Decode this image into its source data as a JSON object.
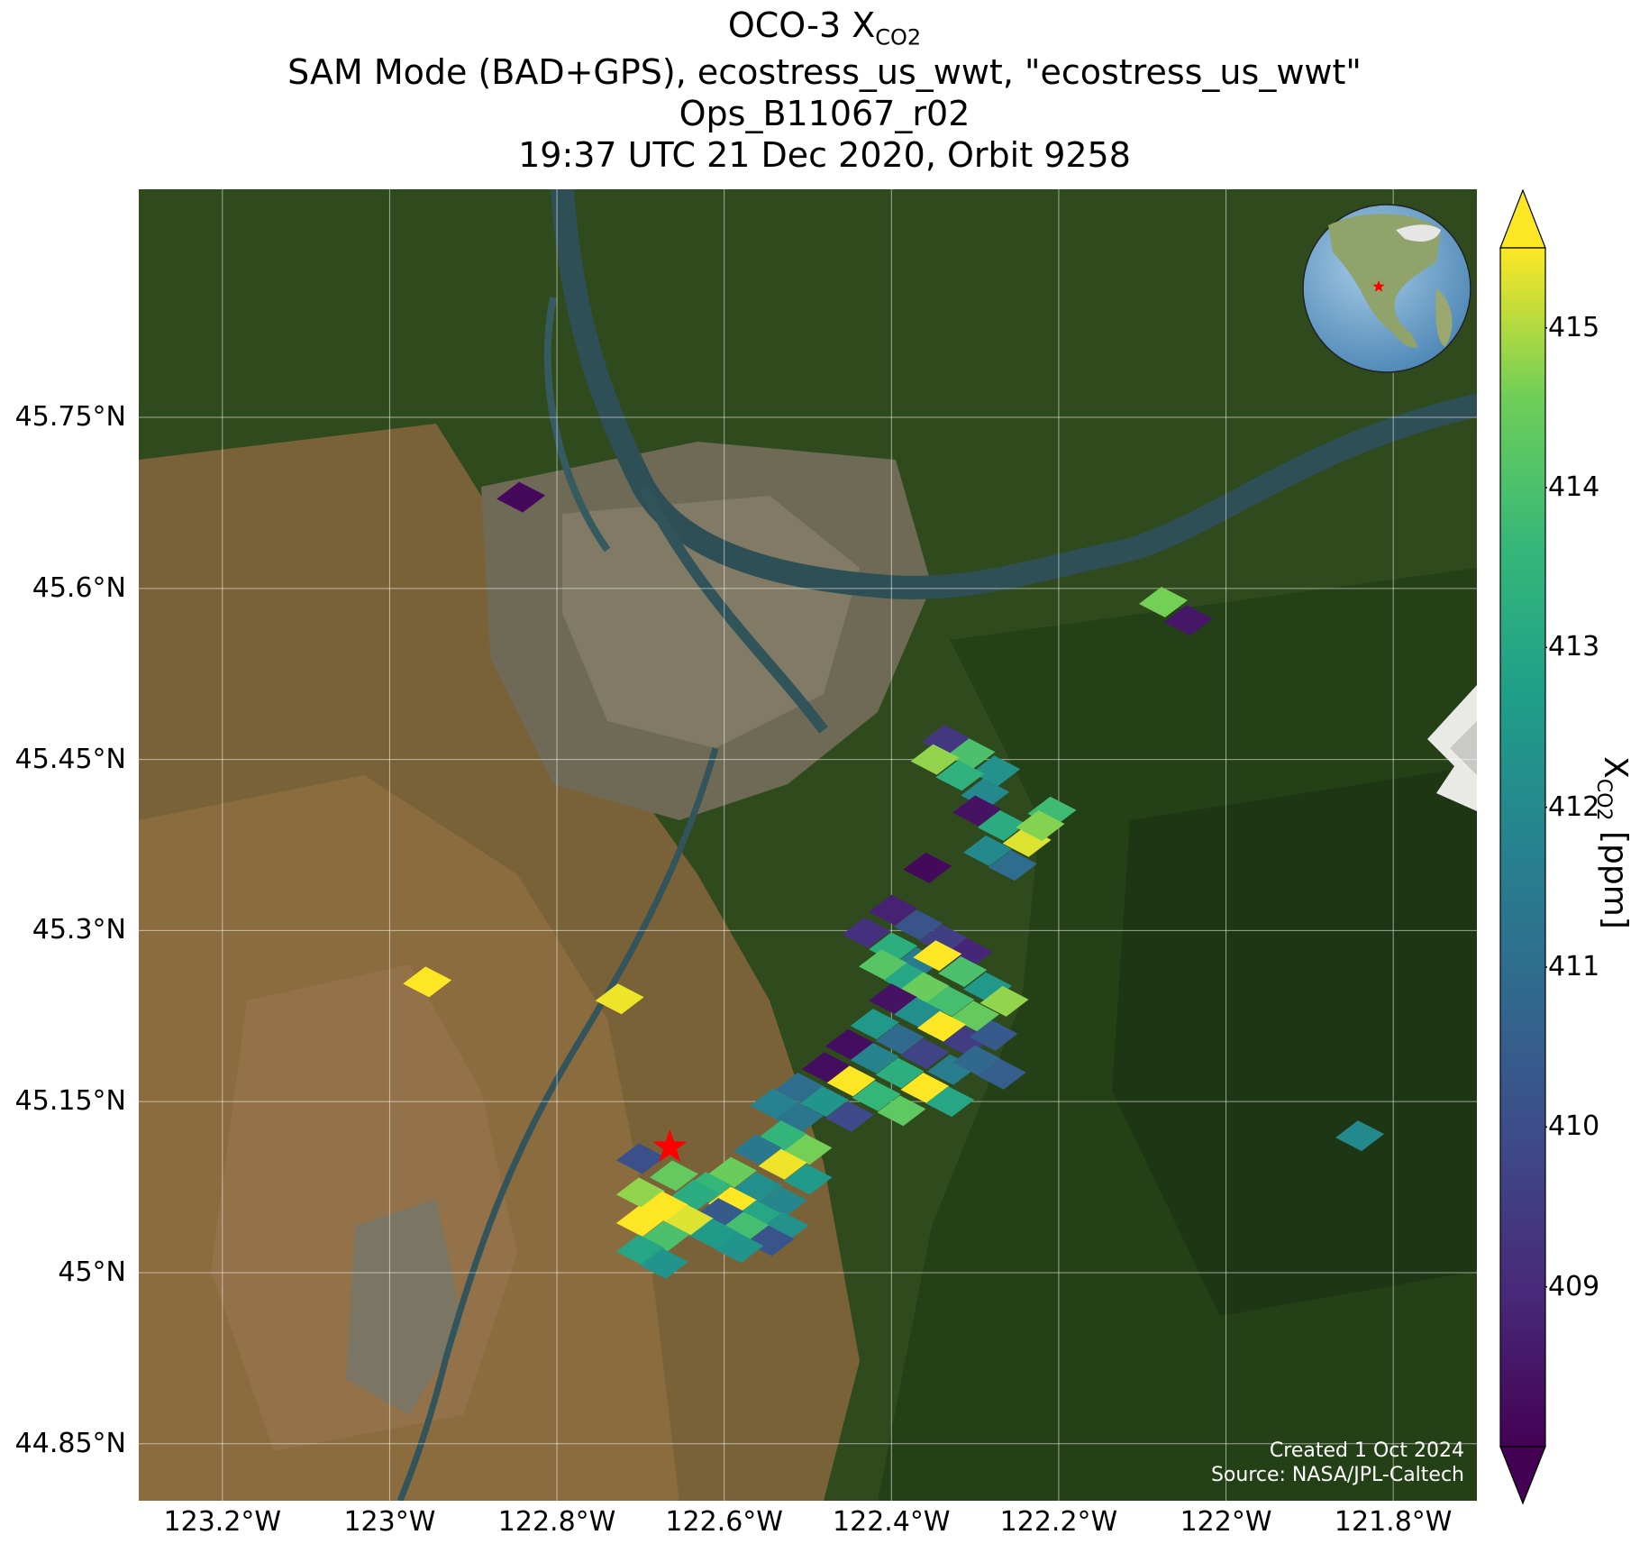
{
  "title": {
    "line1_prefix": "OCO-3 X",
    "line1_sub": "CO2",
    "line2": "SAM Mode (BAD+GPS), ecostress_us_wwt, \"ecostress_us_wwt\"",
    "line3": "Ops_B11067_r02",
    "line4": "19:37 UTC 21 Dec 2020, Orbit 9258"
  },
  "map": {
    "lon_range": [
      -123.3,
      -121.7
    ],
    "lat_range": [
      44.8,
      45.95
    ],
    "lat_ticks": [
      {
        "value": 45.75,
        "label": "45.75°N"
      },
      {
        "value": 45.6,
        "label": "45.6°N"
      },
      {
        "value": 45.45,
        "label": "45.45°N"
      },
      {
        "value": 45.3,
        "label": "45.3°N"
      },
      {
        "value": 45.15,
        "label": "45.15°N"
      },
      {
        "value": 45.0,
        "label": "45°N"
      },
      {
        "value": 44.85,
        "label": "44.85°N"
      }
    ],
    "lon_ticks": [
      {
        "value": -123.2,
        "label": "123.2°W"
      },
      {
        "value": -123.0,
        "label": "123°W"
      },
      {
        "value": -122.8,
        "label": "122.8°W"
      },
      {
        "value": -122.6,
        "label": "122.6°W"
      },
      {
        "value": -122.4,
        "label": "122.4°W"
      },
      {
        "value": -122.2,
        "label": "122.2°W"
      },
      {
        "value": -122.0,
        "label": "122°W"
      },
      {
        "value": -121.8,
        "label": "121.8°W"
      }
    ],
    "grid": true,
    "target_marker": {
      "lon": -122.665,
      "lat": 45.11,
      "color": "#ff0000",
      "icon": "star-icon"
    },
    "background": "satellite-imagery",
    "inset_globe": {
      "position": "top-right",
      "icon": "globe-icon"
    }
  },
  "colorbar": {
    "label_prefix": "X",
    "label_sub": "CO2",
    "label_suffix": " [ppm]",
    "min": 408.0,
    "max": 415.5,
    "extend": "both",
    "colormap": "viridis",
    "ticks": [
      {
        "value": 409,
        "label": "409"
      },
      {
        "value": 410,
        "label": "410"
      },
      {
        "value": 411,
        "label": "411"
      },
      {
        "value": 412,
        "label": "412"
      },
      {
        "value": 413,
        "label": "413"
      },
      {
        "value": 414,
        "label": "414"
      },
      {
        "value": 415,
        "label": "415"
      }
    ]
  },
  "credits": {
    "created": "Created 1 Oct 2024",
    "source": "Source: NASA/JPL-Caltech"
  },
  "chart_data": {
    "type": "scatter",
    "title": "OCO-3 XCO2",
    "value_name": "XCO2 [ppm]",
    "points": [
      {
        "lon": -122.843,
        "lat": 45.68,
        "xco2": 408.2
      },
      {
        "lon": -122.075,
        "lat": 45.588,
        "xco2": 414.6
      },
      {
        "lon": -122.045,
        "lat": 45.572,
        "xco2": 408.5
      },
      {
        "lon": -122.955,
        "lat": 45.255,
        "xco2": 415.6
      },
      {
        "lon": -122.725,
        "lat": 45.24,
        "xco2": 415.4
      },
      {
        "lon": -122.335,
        "lat": 45.467,
        "xco2": 409.4
      },
      {
        "lon": -122.305,
        "lat": 45.455,
        "xco2": 414.0
      },
      {
        "lon": -122.275,
        "lat": 45.44,
        "xco2": 412.3
      },
      {
        "lon": -122.348,
        "lat": 45.45,
        "xco2": 414.8
      },
      {
        "lon": -122.318,
        "lat": 45.436,
        "xco2": 413.4
      },
      {
        "lon": -122.288,
        "lat": 45.42,
        "xco2": 412.0
      },
      {
        "lon": -122.298,
        "lat": 45.405,
        "xco2": 408.4
      },
      {
        "lon": -122.268,
        "lat": 45.392,
        "xco2": 413.2
      },
      {
        "lon": -122.238,
        "lat": 45.378,
        "xco2": 415.3
      },
      {
        "lon": -122.208,
        "lat": 45.404,
        "xco2": 413.8
      },
      {
        "lon": -122.222,
        "lat": 45.392,
        "xco2": 414.7
      },
      {
        "lon": -122.285,
        "lat": 45.37,
        "xco2": 412.0
      },
      {
        "lon": -122.255,
        "lat": 45.357,
        "xco2": 411.0
      },
      {
        "lon": -122.357,
        "lat": 45.355,
        "xco2": 408.2
      },
      {
        "lon": -122.398,
        "lat": 45.318,
        "xco2": 408.8
      },
      {
        "lon": -122.368,
        "lat": 45.305,
        "xco2": 410.2
      },
      {
        "lon": -122.338,
        "lat": 45.292,
        "xco2": 409.6
      },
      {
        "lon": -122.43,
        "lat": 45.298,
        "xco2": 409.2
      },
      {
        "lon": -122.398,
        "lat": 45.285,
        "xco2": 413.3
      },
      {
        "lon": -122.368,
        "lat": 45.272,
        "xco2": 411.5
      },
      {
        "lon": -122.308,
        "lat": 45.28,
        "xco2": 408.9
      },
      {
        "lon": -122.41,
        "lat": 45.27,
        "xco2": 414.2
      },
      {
        "lon": -122.38,
        "lat": 45.258,
        "xco2": 413.0
      },
      {
        "lon": -122.345,
        "lat": 45.278,
        "xco2": 415.6
      },
      {
        "lon": -122.315,
        "lat": 45.264,
        "xco2": 414.0
      },
      {
        "lon": -122.285,
        "lat": 45.25,
        "xco2": 412.5
      },
      {
        "lon": -122.36,
        "lat": 45.25,
        "xco2": 414.5
      },
      {
        "lon": -122.33,
        "lat": 45.238,
        "xco2": 413.9
      },
      {
        "lon": -122.3,
        "lat": 45.225,
        "xco2": 414.4
      },
      {
        "lon": -122.265,
        "lat": 45.238,
        "xco2": 414.8
      },
      {
        "lon": -122.398,
        "lat": 45.24,
        "xco2": 408.4
      },
      {
        "lon": -122.368,
        "lat": 45.228,
        "xco2": 412.2
      },
      {
        "lon": -122.34,
        "lat": 45.216,
        "xco2": 415.6
      },
      {
        "lon": -122.31,
        "lat": 45.203,
        "xco2": 409.5
      },
      {
        "lon": -122.278,
        "lat": 45.208,
        "xco2": 410.4
      },
      {
        "lon": -122.42,
        "lat": 45.218,
        "xco2": 412.5
      },
      {
        "lon": -122.39,
        "lat": 45.205,
        "xco2": 410.9
      },
      {
        "lon": -122.36,
        "lat": 45.192,
        "xco2": 409.7
      },
      {
        "lon": -122.328,
        "lat": 45.178,
        "xco2": 411.6
      },
      {
        "lon": -122.298,
        "lat": 45.186,
        "xco2": 410.8
      },
      {
        "lon": -122.268,
        "lat": 45.174,
        "xco2": 410.5
      },
      {
        "lon": -122.45,
        "lat": 45.2,
        "xco2": 408.3
      },
      {
        "lon": -122.42,
        "lat": 45.188,
        "xco2": 411.8
      },
      {
        "lon": -122.39,
        "lat": 45.175,
        "xco2": 413.3
      },
      {
        "lon": -122.36,
        "lat": 45.162,
        "xco2": 415.6
      },
      {
        "lon": -122.33,
        "lat": 45.15,
        "xco2": 413.0
      },
      {
        "lon": -122.478,
        "lat": 45.18,
        "xco2": 408.3
      },
      {
        "lon": -122.448,
        "lat": 45.168,
        "xco2": 415.5
      },
      {
        "lon": -122.418,
        "lat": 45.155,
        "xco2": 413.6
      },
      {
        "lon": -122.388,
        "lat": 45.142,
        "xco2": 414.3
      },
      {
        "lon": -122.51,
        "lat": 45.162,
        "xco2": 411.0
      },
      {
        "lon": -122.48,
        "lat": 45.15,
        "xco2": 412.4
      },
      {
        "lon": -122.45,
        "lat": 45.137,
        "xco2": 409.9
      },
      {
        "lon": -122.54,
        "lat": 45.148,
        "xco2": 411.7
      },
      {
        "lon": -122.51,
        "lat": 45.136,
        "xco2": 411.3
      },
      {
        "lon": -122.53,
        "lat": 45.12,
        "xco2": 413.5
      },
      {
        "lon": -122.5,
        "lat": 45.108,
        "xco2": 414.6
      },
      {
        "lon": -122.56,
        "lat": 45.108,
        "xco2": 411.4
      },
      {
        "lon": -122.53,
        "lat": 45.095,
        "xco2": 415.4
      },
      {
        "lon": -122.5,
        "lat": 45.082,
        "xco2": 412.6
      },
      {
        "lon": -122.59,
        "lat": 45.088,
        "xco2": 414.5
      },
      {
        "lon": -122.56,
        "lat": 45.075,
        "xco2": 412.2
      },
      {
        "lon": -122.53,
        "lat": 45.062,
        "xco2": 411.9
      },
      {
        "lon": -122.62,
        "lat": 45.075,
        "xco2": 413.6
      },
      {
        "lon": -122.59,
        "lat": 45.062,
        "xco2": 415.5
      },
      {
        "lon": -122.56,
        "lat": 45.05,
        "xco2": 413.0
      },
      {
        "lon": -122.528,
        "lat": 45.04,
        "xco2": 412.3
      },
      {
        "lon": -122.7,
        "lat": 45.1,
        "xco2": 410.1
      },
      {
        "lon": -122.66,
        "lat": 45.085,
        "xco2": 414.4
      },
      {
        "lon": -122.635,
        "lat": 45.068,
        "xco2": 413.2
      },
      {
        "lon": -122.605,
        "lat": 45.052,
        "xco2": 410.4
      },
      {
        "lon": -122.575,
        "lat": 45.04,
        "xco2": 413.9
      },
      {
        "lon": -122.545,
        "lat": 45.028,
        "xco2": 410.2
      },
      {
        "lon": -122.7,
        "lat": 45.07,
        "xco2": 414.8
      },
      {
        "lon": -122.672,
        "lat": 45.058,
        "xco2": 415.6
      },
      {
        "lon": -122.642,
        "lat": 45.046,
        "xco2": 415.3
      },
      {
        "lon": -122.612,
        "lat": 45.034,
        "xco2": 412.6
      },
      {
        "lon": -122.582,
        "lat": 45.022,
        "xco2": 412.4
      },
      {
        "lon": -122.7,
        "lat": 45.045,
        "xco2": 415.6
      },
      {
        "lon": -122.67,
        "lat": 45.032,
        "xco2": 414.0
      },
      {
        "lon": -122.7,
        "lat": 45.02,
        "xco2": 413.0
      },
      {
        "lon": -122.672,
        "lat": 45.008,
        "xco2": 412.4
      },
      {
        "lon": -121.84,
        "lat": 45.12,
        "xco2": 412.0
      }
    ]
  }
}
